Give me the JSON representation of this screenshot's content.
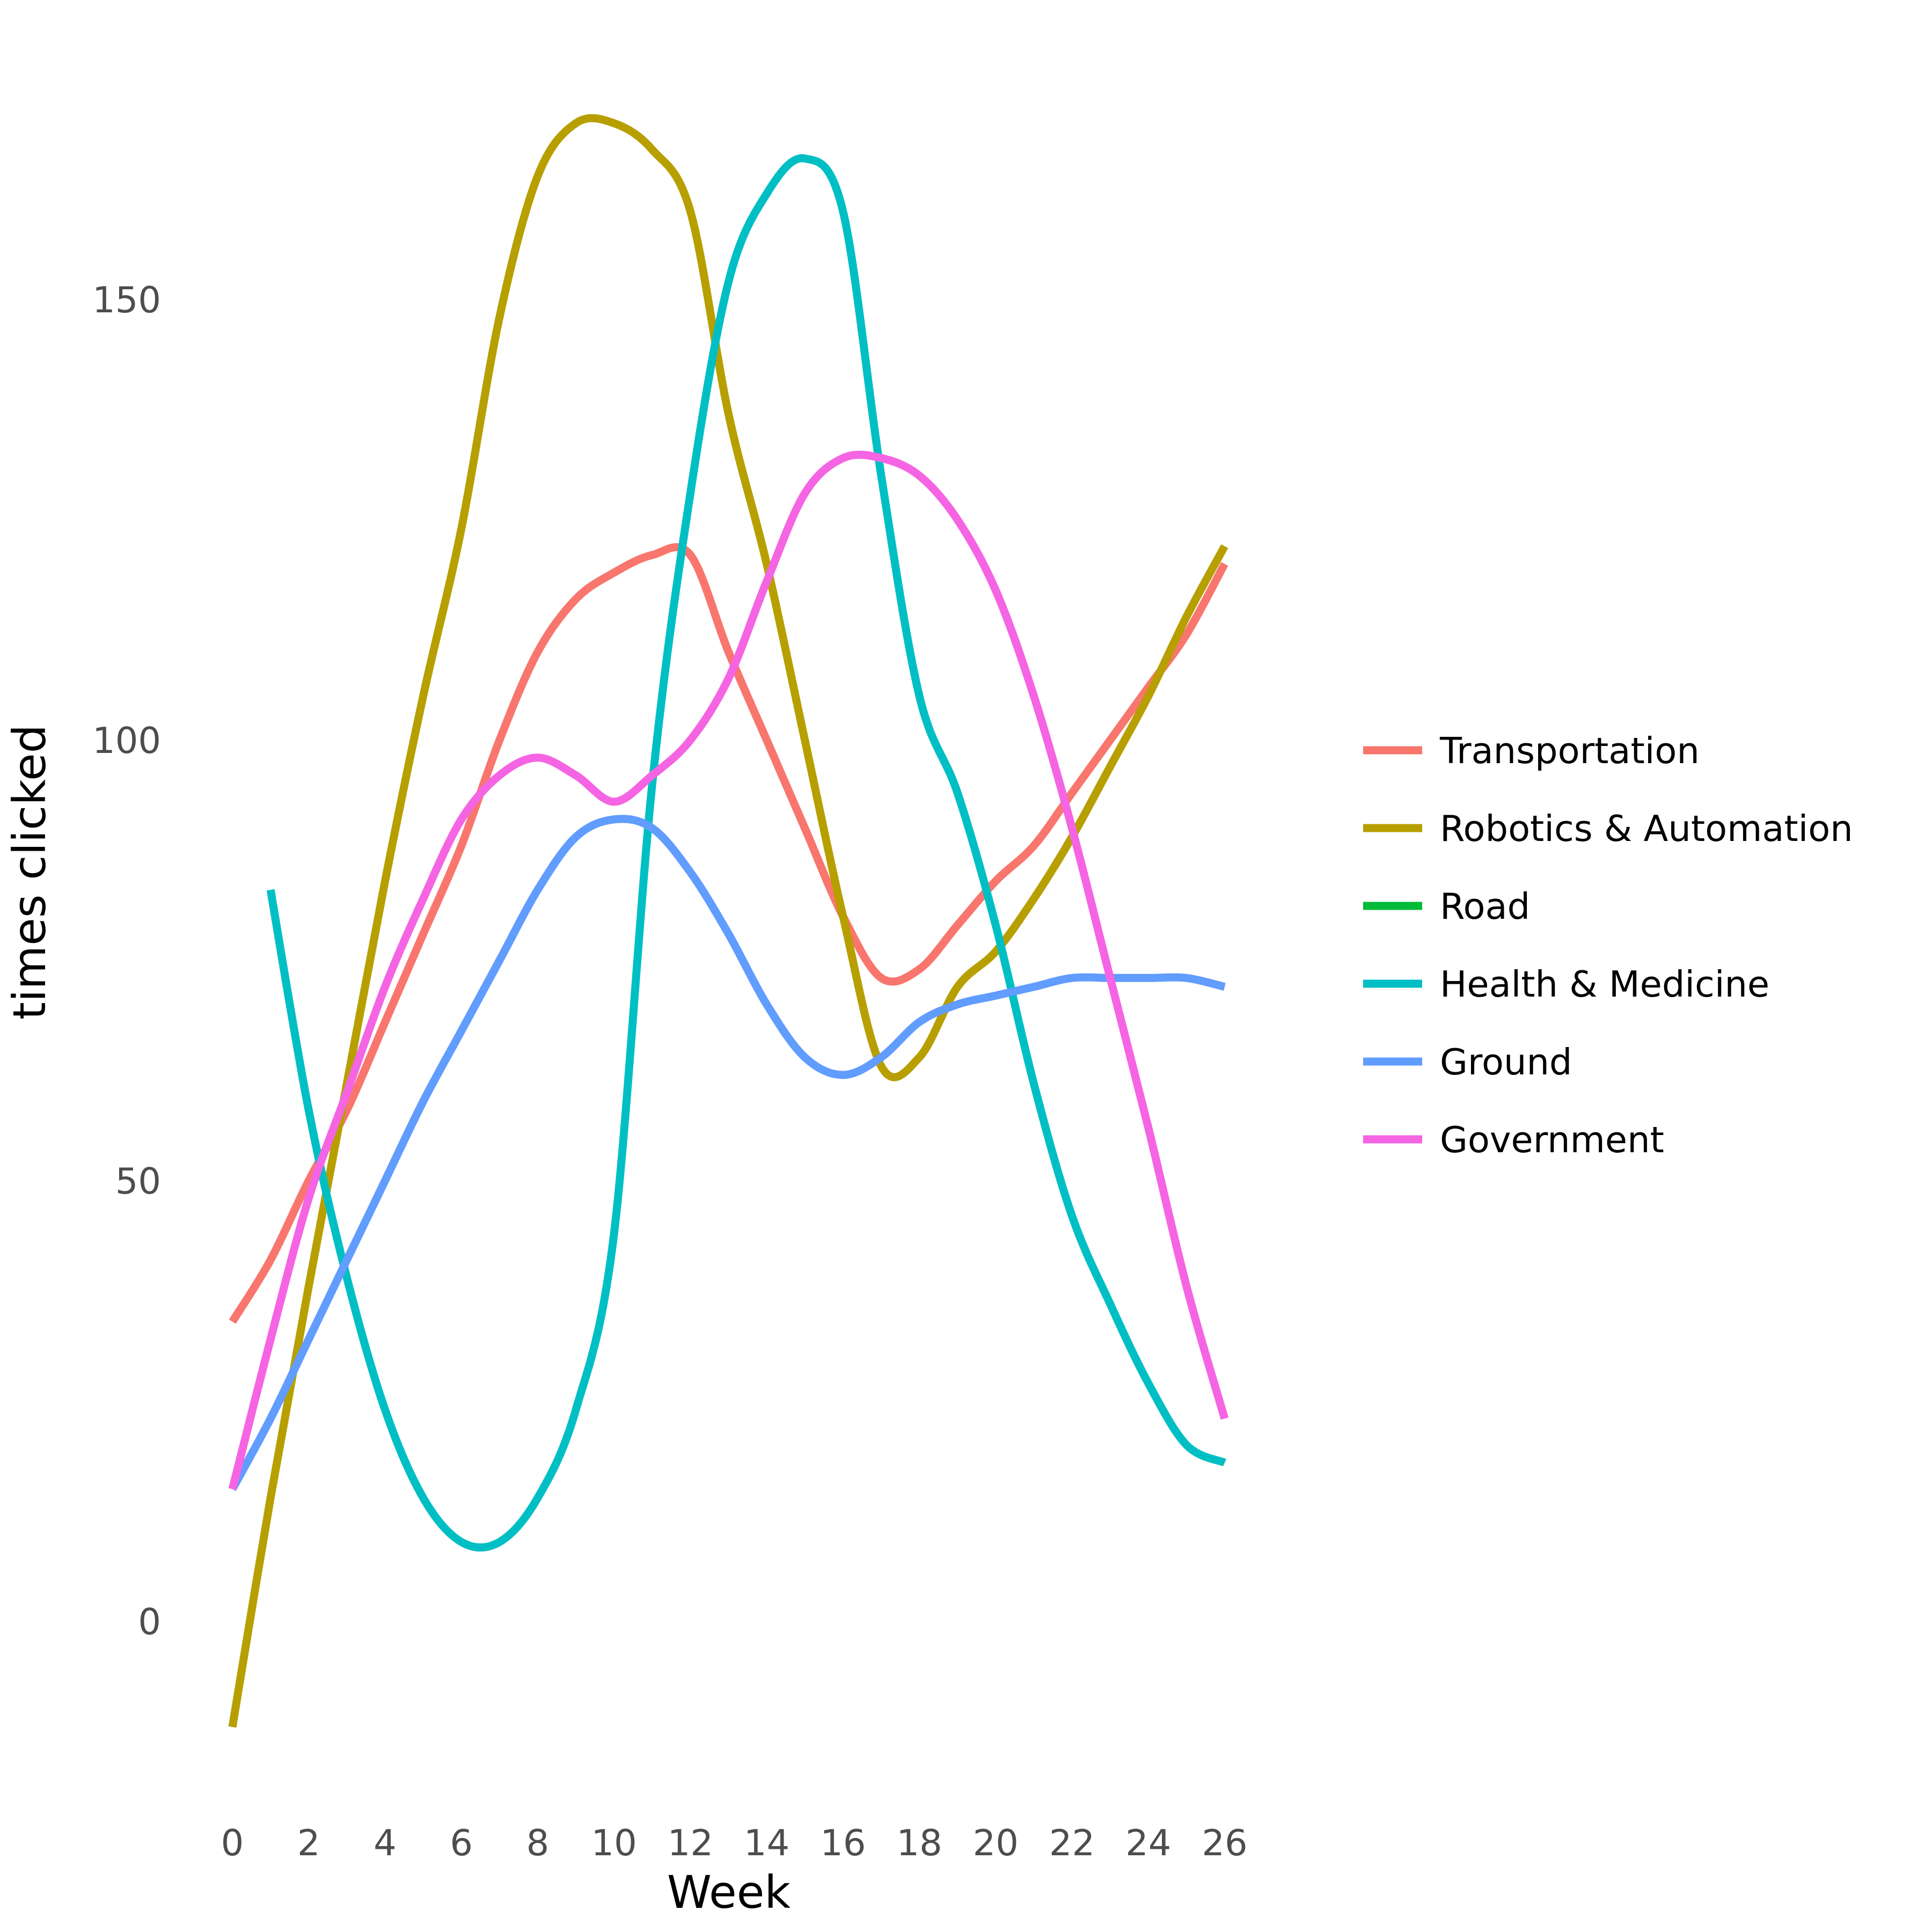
{
  "chart_data": {
    "type": "line",
    "title": "",
    "xlabel": "Week",
    "ylabel": "times clicked",
    "xlim": [
      0,
      26
    ],
    "ylim": [
      -20,
      170
    ],
    "x_ticks": [
      0,
      2,
      4,
      6,
      8,
      10,
      12,
      14,
      16,
      18,
      20,
      22,
      24,
      26
    ],
    "y_ticks": [
      0,
      50,
      100,
      150
    ],
    "grid": false,
    "legend_position": "right",
    "series": [
      {
        "name": "Transportation",
        "color": "#F8766D",
        "x": [
          0,
          1,
          2,
          3,
          4,
          5,
          6,
          7,
          8,
          9,
          10,
          11,
          12,
          13,
          14,
          15,
          16,
          17,
          18,
          19,
          20,
          21,
          22,
          23,
          24,
          25,
          26
        ],
        "y": [
          34,
          41,
          50,
          58,
          68,
          78,
          88,
          100,
          110,
          116,
          119,
          121,
          121,
          110,
          100,
          90,
          80,
          73,
          74,
          79,
          84,
          88,
          94,
          100,
          106,
          112,
          120
        ]
      },
      {
        "name": "Robotics & Automation",
        "color": "#B79F00",
        "x": [
          0,
          1,
          2,
          3,
          4,
          5,
          6,
          7,
          8,
          9,
          10,
          11,
          12,
          13,
          14,
          15,
          16,
          17,
          18,
          19,
          20,
          21,
          22,
          23,
          24,
          25,
          26
        ],
        "y": [
          -12,
          14,
          38,
          61,
          84,
          105,
          124,
          148,
          164,
          170,
          170,
          167,
          160,
          137,
          120,
          100,
          80,
          63,
          64,
          72,
          76,
          82,
          89,
          97,
          105,
          114,
          122
        ]
      },
      {
        "name": "Road",
        "color": "#00BA38",
        "x": [],
        "y": []
      },
      {
        "name": "Health & Medicine",
        "color": "#00BFC4",
        "x": [
          1,
          2,
          3,
          4,
          5,
          6,
          7,
          8,
          9,
          10,
          11,
          12,
          13,
          14,
          15,
          16,
          17,
          18,
          19,
          20,
          21,
          22,
          23,
          24,
          25,
          26
        ],
        "y": [
          83,
          58,
          39,
          24,
          14,
          9,
          9,
          14,
          24,
          44,
          95,
          128,
          152,
          162,
          166,
          160,
          130,
          105,
          94,
          79,
          61,
          46,
          36,
          27,
          20,
          18
        ]
      },
      {
        "name": "Ground",
        "color": "#619CFF",
        "x": [
          0,
          1,
          2,
          3,
          4,
          5,
          6,
          7,
          8,
          9,
          10,
          11,
          12,
          13,
          14,
          15,
          16,
          17,
          18,
          19,
          20,
          21,
          22,
          23,
          24,
          25,
          26
        ],
        "y": [
          15,
          23,
          32,
          41,
          50,
          59,
          67,
          75,
          83,
          89,
          91,
          90,
          85,
          78,
          70,
          64,
          62,
          64,
          68,
          70,
          71,
          72,
          73,
          73,
          73,
          73,
          72
        ]
      },
      {
        "name": "Government",
        "color": "#F564E3",
        "x": [
          0,
          1,
          2,
          3,
          4,
          5,
          6,
          7,
          8,
          9,
          10,
          11,
          12,
          13,
          14,
          15,
          16,
          17,
          18,
          19,
          20,
          21,
          22,
          23,
          24,
          25,
          26
        ],
        "y": [
          15,
          32,
          48,
          60,
          72,
          82,
          91,
          96,
          98,
          96,
          93,
          96,
          100,
          107,
          118,
          128,
          132,
          132,
          130,
          125,
          117,
          105,
          90,
          73,
          56,
          38,
          23
        ]
      }
    ]
  }
}
